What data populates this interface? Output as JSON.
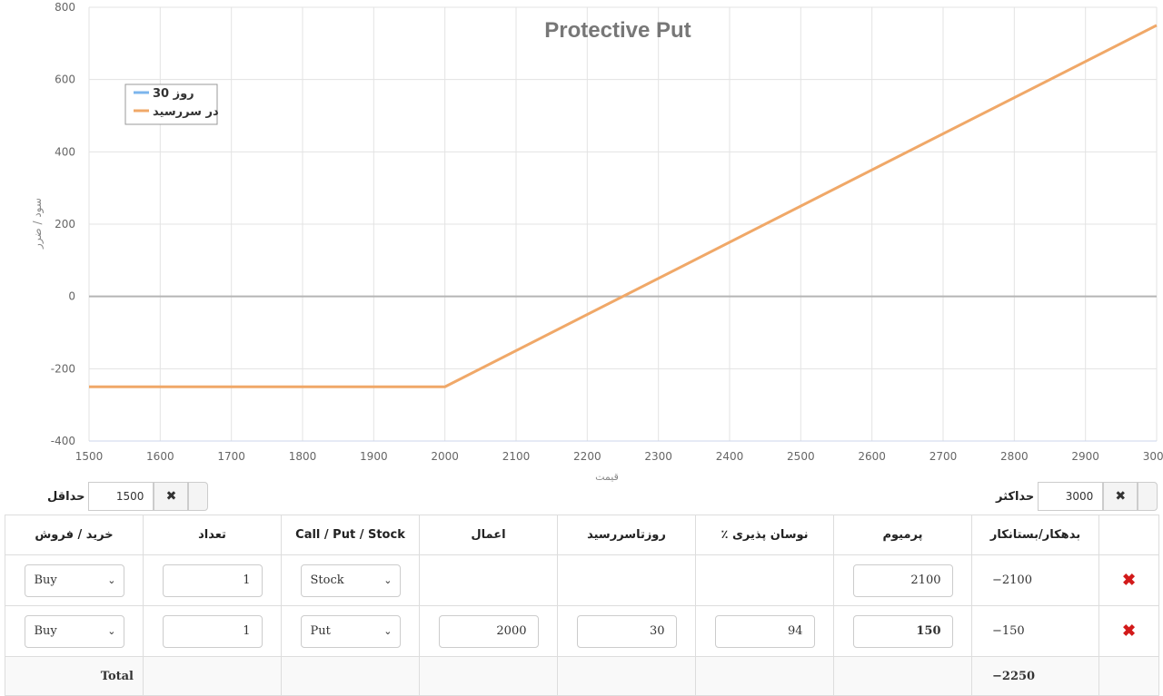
{
  "chart_data": {
    "type": "line",
    "title": "Protective Put",
    "xlabel": "قیمت",
    "ylabel": "سود / ضرر",
    "xlim": [
      1500,
      3000
    ],
    "ylim": [
      -400,
      800
    ],
    "x_ticks": [
      1500,
      1600,
      1700,
      1800,
      1900,
      2000,
      2100,
      2200,
      2300,
      2400,
      2500,
      2600,
      2700,
      2800,
      2900,
      3000
    ],
    "y_ticks": [
      -400,
      -200,
      0,
      200,
      400,
      600,
      800
    ],
    "grid": true,
    "legend_position": "top-left",
    "series": [
      {
        "name": "روز 30",
        "color": "#7cb5ec",
        "x": [],
        "y": []
      },
      {
        "name": "در سررسید",
        "color": "#f0a868",
        "x": [
          1500,
          2000,
          3000
        ],
        "y": [
          -250,
          -250,
          750
        ]
      }
    ]
  },
  "controls": {
    "min_label": "حداقل",
    "min_value": "1500",
    "max_label": "حداکثر",
    "max_value": "3000",
    "clear_icon": "✖"
  },
  "table": {
    "headers": [
      "خرید / فروش",
      "تعداد",
      "Call / Put / Stock",
      "اعمال",
      "روزتاسررسید",
      "٪ نوسان پذیری",
      "پرمیوم",
      "بدهکار/بستانکار",
      ""
    ],
    "rows": [
      {
        "side": "Buy",
        "qty": "1",
        "type": "Stock",
        "strike": "",
        "days": "",
        "vol": "",
        "premium": "2100",
        "debit": "−2100",
        "delete_icon": "✖"
      },
      {
        "side": "Buy",
        "qty": "1",
        "type": "Put",
        "strike": "2000",
        "days": "30",
        "vol": "94",
        "premium": "150",
        "debit": "−150",
        "delete_icon": "✖"
      }
    ],
    "total_label": "Total",
    "total_value": "−2250"
  }
}
